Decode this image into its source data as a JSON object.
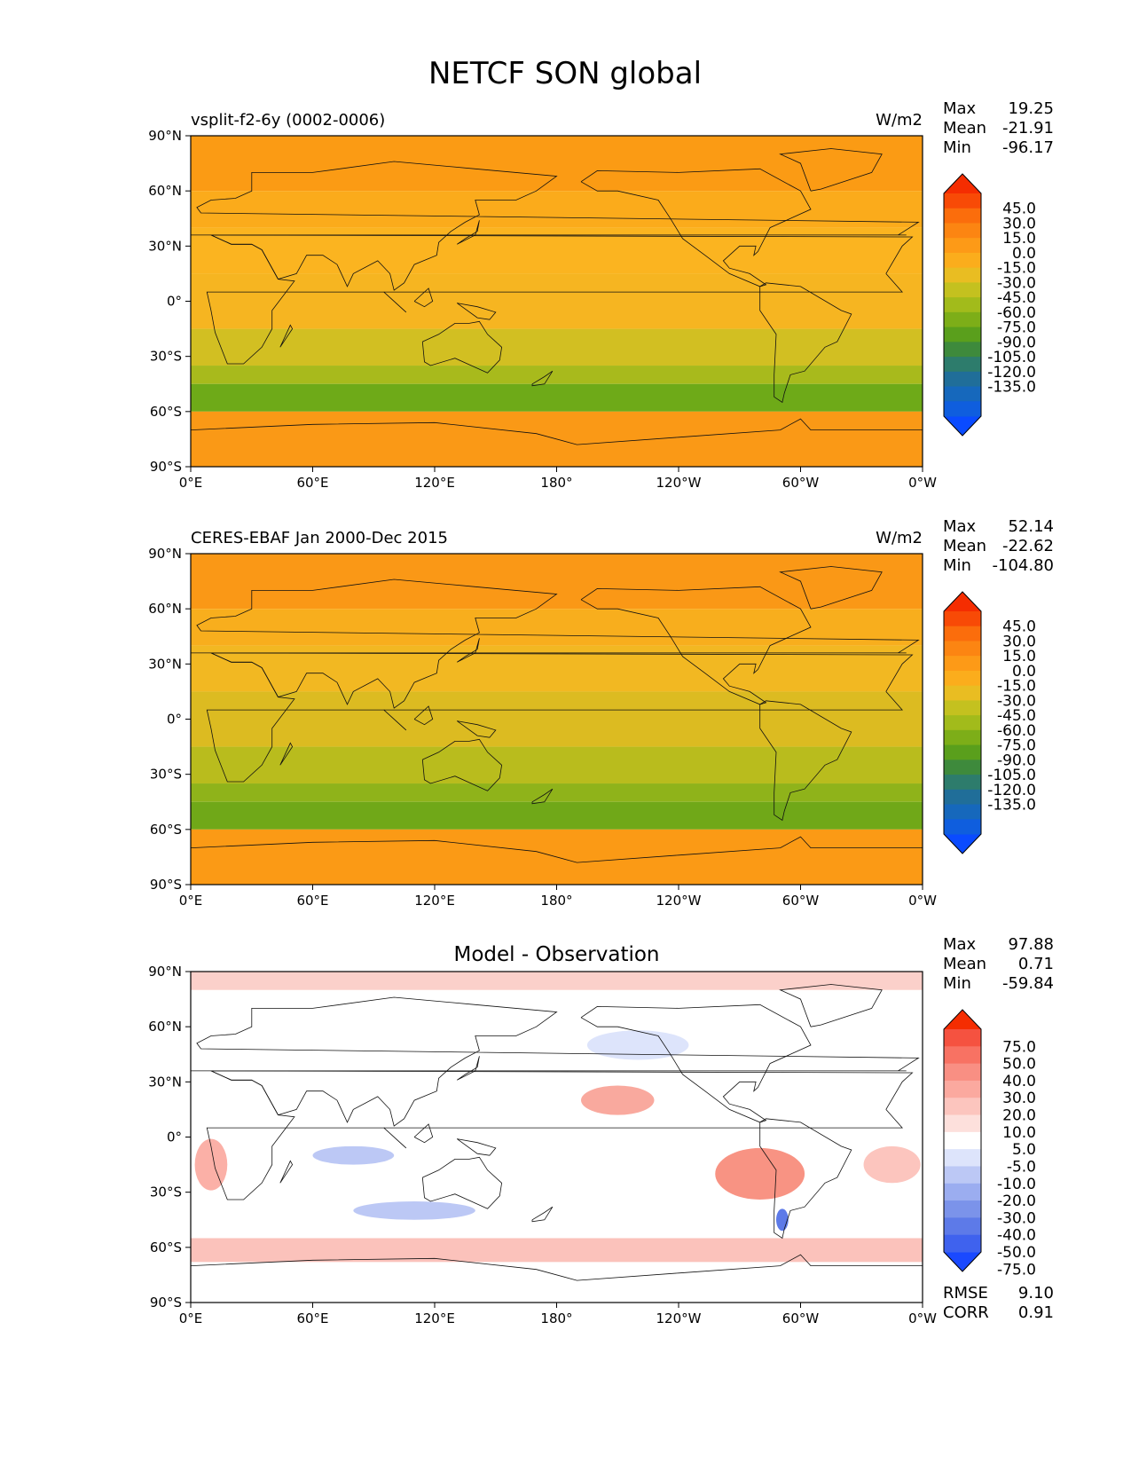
{
  "title": "NETCF SON global",
  "x_ticks": [
    "0°E",
    "60°E",
    "120°E",
    "180°",
    "120°W",
    "60°W",
    "0°W"
  ],
  "y_ticks": [
    "90°N",
    "60°N",
    "30°N",
    "0°",
    "30°S",
    "60°S",
    "90°S"
  ],
  "stat_labels": {
    "max": "Max",
    "mean": "Mean",
    "min": "Min",
    "rmse": "RMSE",
    "corr": "CORR"
  },
  "chart_data": [
    {
      "type": "heatmap",
      "id": "model",
      "title_left": "vsplit-f2-6y (0002-0006)",
      "title_center": "",
      "units": "W/m2",
      "stats": {
        "max": "19.25",
        "mean": "-21.91",
        "min": "-96.17"
      },
      "xlim": [
        0,
        360
      ],
      "ylim": [
        -90,
        90
      ],
      "colorbar": {
        "extend": "both",
        "colors": [
          "#0a4bff",
          "#0f5ede",
          "#1668bc",
          "#206e99",
          "#2d7c6c",
          "#3e8a3c",
          "#5a9f1c",
          "#7dae18",
          "#a2bb1b",
          "#c4c11f",
          "#e9bd22",
          "#fbad1c",
          "#fd9a17",
          "#fc8512",
          "#fb6d0c",
          "#f84a06",
          "#f52d01"
        ],
        "labels": [
          "45.0",
          "30.0",
          "15.0",
          "0.0",
          "-15.0",
          "-30.0",
          "-45.0",
          "-60.0",
          "-75.0",
          "-90.0",
          "-105.0",
          "-120.0",
          "-135.0"
        ]
      },
      "bands": [
        {
          "lat": [
            60,
            90
          ],
          "color": "#fb9b14"
        },
        {
          "lat": [
            40,
            60
          ],
          "color": "#fbab1b"
        },
        {
          "lat": [
            15,
            40
          ],
          "color": "#fbb420"
        },
        {
          "lat": [
            -15,
            15
          ],
          "color": "#f6b521"
        },
        {
          "lat": [
            -35,
            -15
          ],
          "color": "#d2bf22"
        },
        {
          "lat": [
            -45,
            -35
          ],
          "color": "#a8ba1c"
        },
        {
          "lat": [
            -60,
            -45
          ],
          "color": "#6eaa18"
        },
        {
          "lat": [
            -90,
            -60
          ],
          "color": "#fa9916"
        }
      ]
    },
    {
      "type": "heatmap",
      "id": "obs",
      "title_left": "CERES-EBAF Jan 2000-Dec 2015",
      "title_center": "",
      "units": "W/m2",
      "stats": {
        "max": "52.14",
        "mean": "-22.62",
        "min": "-104.80"
      },
      "xlim": [
        0,
        360
      ],
      "ylim": [
        -90,
        90
      ],
      "colorbar": {
        "extend": "both",
        "colors": [
          "#0a4bff",
          "#0f5ede",
          "#1668bc",
          "#206e99",
          "#2d7c6c",
          "#3e8a3c",
          "#5a9f1c",
          "#7dae18",
          "#a2bb1b",
          "#c4c11f",
          "#e9bd22",
          "#fbad1c",
          "#fd9a17",
          "#fc8512",
          "#fb6d0c",
          "#f84a06",
          "#f52d01"
        ],
        "labels": [
          "45.0",
          "30.0",
          "15.0",
          "0.0",
          "-15.0",
          "-30.0",
          "-45.0",
          "-60.0",
          "-75.0",
          "-90.0",
          "-105.0",
          "-120.0",
          "-135.0"
        ]
      },
      "bands": [
        {
          "lat": [
            60,
            90
          ],
          "color": "#fa9816"
        },
        {
          "lat": [
            40,
            60
          ],
          "color": "#f8ae1d"
        },
        {
          "lat": [
            15,
            40
          ],
          "color": "#f2b822"
        },
        {
          "lat": [
            -15,
            15
          ],
          "color": "#dcbb21"
        },
        {
          "lat": [
            -35,
            -15
          ],
          "color": "#b9bc1d"
        },
        {
          "lat": [
            -45,
            -35
          ],
          "color": "#8fb31a"
        },
        {
          "lat": [
            -60,
            -45
          ],
          "color": "#70a818"
        },
        {
          "lat": [
            -90,
            -60
          ],
          "color": "#fb9a15"
        }
      ]
    },
    {
      "type": "heatmap",
      "id": "diff",
      "title_left": "",
      "title_center": "Model - Observation",
      "units": "",
      "stats": {
        "max": "97.88",
        "mean": "0.71",
        "min": "-59.84",
        "rmse": "9.10",
        "corr": "0.91"
      },
      "xlim": [
        0,
        360
      ],
      "ylim": [
        -90,
        90
      ],
      "colorbar": {
        "extend": "both",
        "colors": [
          "#1a49ff",
          "#3f62ee",
          "#5d7ae8",
          "#7b93ea",
          "#9badf0",
          "#bcc8f5",
          "#dde4fb",
          "#ffffff",
          "#fde0dc",
          "#fcc5be",
          "#fba99f",
          "#f98f83",
          "#f87263",
          "#f55240",
          "#f52d01"
        ],
        "labels": [
          "75.0",
          "50.0",
          "40.0",
          "30.0",
          "20.0",
          "10.0",
          "5.0",
          "-5.0",
          "-10.0",
          "-20.0",
          "-30.0",
          "-40.0",
          "-50.0",
          "-75.0"
        ]
      },
      "bands": [
        {
          "lat": [
            80,
            90
          ],
          "color": "#fbd0ca"
        },
        {
          "lat": [
            -68,
            -55
          ],
          "color": "#fbc2bb"
        },
        {
          "lat": [
            -90,
            -68
          ],
          "color": "#ffffff"
        }
      ],
      "features": [
        {
          "lon": 210,
          "lat": 20,
          "rx": 18,
          "ry": 8,
          "color": "#f9a99e"
        },
        {
          "lon": 280,
          "lat": -20,
          "rx": 22,
          "ry": 14,
          "color": "#f89383"
        },
        {
          "lon": 291,
          "lat": -45,
          "rx": 3,
          "ry": 6,
          "color": "#5d7ae8"
        },
        {
          "lon": 10,
          "lat": -15,
          "rx": 8,
          "ry": 14,
          "color": "#fbb0a7"
        },
        {
          "lon": 345,
          "lat": -15,
          "rx": 14,
          "ry": 10,
          "color": "#fcc5be"
        },
        {
          "lon": 80,
          "lat": -10,
          "rx": 20,
          "ry": 5,
          "color": "#bcc8f5"
        },
        {
          "lon": 220,
          "lat": 50,
          "rx": 25,
          "ry": 8,
          "color": "#dde4fb"
        },
        {
          "lon": 110,
          "lat": -40,
          "rx": 30,
          "ry": 5,
          "color": "#bcc8f5"
        }
      ]
    }
  ]
}
